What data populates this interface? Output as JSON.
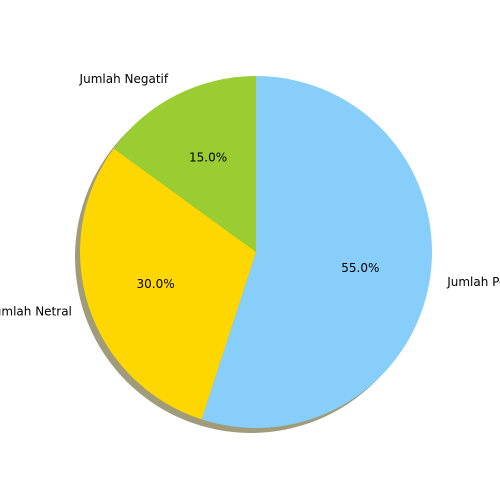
{
  "chart_data": {
    "type": "pie",
    "title": "",
    "labels": [
      "Jumlah Positif",
      "Jumlah Netral",
      "Jumlah Negatif"
    ],
    "values": [
      55.0,
      30.0,
      15.0
    ],
    "percent_labels": [
      "55.0%",
      "30.0%",
      "15.0%"
    ],
    "colors": [
      "#87CEFA",
      "#FFD700",
      "#9ACD32"
    ],
    "start_angle_deg": 90,
    "direction": "clockwise",
    "shadow": true,
    "legend": "none"
  }
}
